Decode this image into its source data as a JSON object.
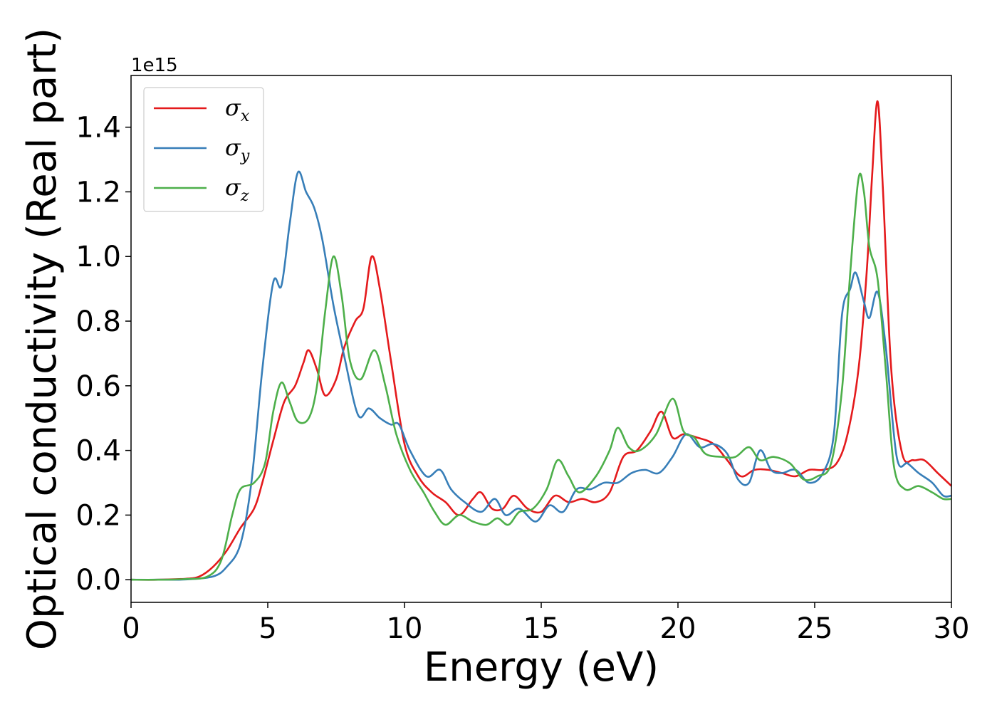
{
  "chart_data": {
    "type": "line",
    "xlabel": "Energy (eV)",
    "ylabel": "Optical conductivity (Real part)",
    "offset_text": "1e15",
    "xlim": [
      0,
      30
    ],
    "ylim": [
      -0.07,
      1.56
    ],
    "x_ticks": [
      0,
      5,
      10,
      15,
      20,
      25,
      30
    ],
    "x_tick_labels": [
      "0",
      "5",
      "10",
      "15",
      "20",
      "25",
      "30"
    ],
    "y_ticks": [
      0.0,
      0.2,
      0.4,
      0.6,
      0.8,
      1.0,
      1.2,
      1.4
    ],
    "y_tick_labels": [
      "0.0",
      "0.2",
      "0.4",
      "0.6",
      "0.8",
      "1.0",
      "1.2",
      "1.4"
    ],
    "grid": false,
    "legend_position": "top-left",
    "series": [
      {
        "name": "σx",
        "legend_base": "σ",
        "legend_sub": "x",
        "color": "#e41a1c",
        "points": [
          [
            0,
            0
          ],
          [
            1,
            0
          ],
          [
            2,
            0.003
          ],
          [
            2.5,
            0.01
          ],
          [
            3,
            0.04
          ],
          [
            3.5,
            0.09
          ],
          [
            4,
            0.16
          ],
          [
            4.5,
            0.22
          ],
          [
            4.8,
            0.3
          ],
          [
            5.2,
            0.43
          ],
          [
            5.6,
            0.55
          ],
          [
            6,
            0.6
          ],
          [
            6.3,
            0.67
          ],
          [
            6.5,
            0.71
          ],
          [
            6.8,
            0.65
          ],
          [
            7.1,
            0.57
          ],
          [
            7.5,
            0.62
          ],
          [
            7.8,
            0.72
          ],
          [
            8.2,
            0.8
          ],
          [
            8.5,
            0.84
          ],
          [
            8.8,
            1.0
          ],
          [
            9.1,
            0.9
          ],
          [
            9.5,
            0.68
          ],
          [
            10,
            0.42
          ],
          [
            10.5,
            0.32
          ],
          [
            11,
            0.27
          ],
          [
            11.5,
            0.24
          ],
          [
            12,
            0.2
          ],
          [
            12.5,
            0.25
          ],
          [
            12.8,
            0.27
          ],
          [
            13.2,
            0.22
          ],
          [
            13.6,
            0.22
          ],
          [
            14,
            0.26
          ],
          [
            14.5,
            0.22
          ],
          [
            15,
            0.21
          ],
          [
            15.5,
            0.26
          ],
          [
            16,
            0.24
          ],
          [
            16.5,
            0.25
          ],
          [
            17,
            0.24
          ],
          [
            17.5,
            0.27
          ],
          [
            18,
            0.38
          ],
          [
            18.5,
            0.4
          ],
          [
            19,
            0.46
          ],
          [
            19.4,
            0.52
          ],
          [
            19.8,
            0.44
          ],
          [
            20.2,
            0.45
          ],
          [
            20.7,
            0.44
          ],
          [
            21.3,
            0.42
          ],
          [
            21.8,
            0.37
          ],
          [
            22.3,
            0.32
          ],
          [
            22.8,
            0.34
          ],
          [
            23.3,
            0.34
          ],
          [
            23.8,
            0.33
          ],
          [
            24.3,
            0.32
          ],
          [
            24.8,
            0.34
          ],
          [
            25.3,
            0.34
          ],
          [
            25.8,
            0.36
          ],
          [
            26.2,
            0.45
          ],
          [
            26.6,
            0.65
          ],
          [
            26.9,
            0.95
          ],
          [
            27.1,
            1.25
          ],
          [
            27.3,
            1.48
          ],
          [
            27.5,
            1.2
          ],
          [
            27.8,
            0.65
          ],
          [
            28.2,
            0.39
          ],
          [
            28.6,
            0.37
          ],
          [
            29,
            0.37
          ],
          [
            29.5,
            0.33
          ],
          [
            30,
            0.29
          ]
        ]
      },
      {
        "name": "σy",
        "legend_base": "σ",
        "legend_sub": "y",
        "color": "#377eb8",
        "points": [
          [
            0,
            0
          ],
          [
            1,
            0
          ],
          [
            2,
            0.001
          ],
          [
            3,
            0.01
          ],
          [
            3.5,
            0.04
          ],
          [
            4,
            0.11
          ],
          [
            4.4,
            0.3
          ],
          [
            4.8,
            0.65
          ],
          [
            5.2,
            0.92
          ],
          [
            5.5,
            0.91
          ],
          [
            5.8,
            1.1
          ],
          [
            6.1,
            1.26
          ],
          [
            6.4,
            1.2
          ],
          [
            6.7,
            1.15
          ],
          [
            7,
            1.05
          ],
          [
            7.4,
            0.85
          ],
          [
            7.8,
            0.69
          ],
          [
            8.3,
            0.51
          ],
          [
            8.7,
            0.53
          ],
          [
            9.1,
            0.5
          ],
          [
            9.5,
            0.48
          ],
          [
            9.8,
            0.48
          ],
          [
            10.2,
            0.4
          ],
          [
            10.8,
            0.32
          ],
          [
            11.3,
            0.34
          ],
          [
            11.7,
            0.28
          ],
          [
            12.2,
            0.24
          ],
          [
            12.8,
            0.21
          ],
          [
            13.3,
            0.25
          ],
          [
            13.7,
            0.2
          ],
          [
            14.2,
            0.22
          ],
          [
            14.8,
            0.18
          ],
          [
            15.3,
            0.23
          ],
          [
            15.8,
            0.21
          ],
          [
            16.3,
            0.28
          ],
          [
            16.8,
            0.28
          ],
          [
            17.3,
            0.3
          ],
          [
            17.8,
            0.3
          ],
          [
            18.3,
            0.33
          ],
          [
            18.8,
            0.34
          ],
          [
            19.3,
            0.33
          ],
          [
            19.8,
            0.38
          ],
          [
            20.3,
            0.45
          ],
          [
            20.8,
            0.41
          ],
          [
            21.3,
            0.42
          ],
          [
            21.8,
            0.39
          ],
          [
            22.2,
            0.31
          ],
          [
            22.6,
            0.3
          ],
          [
            23,
            0.4
          ],
          [
            23.4,
            0.34
          ],
          [
            23.8,
            0.33
          ],
          [
            24.3,
            0.34
          ],
          [
            24.8,
            0.3
          ],
          [
            25.3,
            0.33
          ],
          [
            25.7,
            0.45
          ],
          [
            26,
            0.82
          ],
          [
            26.3,
            0.9
          ],
          [
            26.5,
            0.95
          ],
          [
            26.8,
            0.86
          ],
          [
            27,
            0.81
          ],
          [
            27.3,
            0.89
          ],
          [
            27.6,
            0.72
          ],
          [
            28,
            0.38
          ],
          [
            28.4,
            0.36
          ],
          [
            28.8,
            0.33
          ],
          [
            29.3,
            0.3
          ],
          [
            29.7,
            0.26
          ],
          [
            30,
            0.26
          ]
        ]
      },
      {
        "name": "σz",
        "legend_base": "σ",
        "legend_sub": "z",
        "color": "#4daf4a",
        "points": [
          [
            0,
            0
          ],
          [
            1,
            0
          ],
          [
            2,
            0.002
          ],
          [
            2.8,
            0.01
          ],
          [
            3.3,
            0.06
          ],
          [
            3.7,
            0.2
          ],
          [
            4,
            0.28
          ],
          [
            4.5,
            0.3
          ],
          [
            4.9,
            0.36
          ],
          [
            5.2,
            0.52
          ],
          [
            5.5,
            0.61
          ],
          [
            5.8,
            0.55
          ],
          [
            6.1,
            0.49
          ],
          [
            6.5,
            0.5
          ],
          [
            6.8,
            0.6
          ],
          [
            7.1,
            0.83
          ],
          [
            7.4,
            1.0
          ],
          [
            7.7,
            0.88
          ],
          [
            8,
            0.68
          ],
          [
            8.4,
            0.62
          ],
          [
            8.9,
            0.71
          ],
          [
            9.3,
            0.6
          ],
          [
            9.7,
            0.45
          ],
          [
            10.2,
            0.34
          ],
          [
            10.7,
            0.27
          ],
          [
            11.1,
            0.21
          ],
          [
            11.5,
            0.17
          ],
          [
            12,
            0.2
          ],
          [
            12.5,
            0.18
          ],
          [
            13,
            0.17
          ],
          [
            13.4,
            0.19
          ],
          [
            13.8,
            0.17
          ],
          [
            14.2,
            0.21
          ],
          [
            14.7,
            0.22
          ],
          [
            15.2,
            0.28
          ],
          [
            15.6,
            0.37
          ],
          [
            16,
            0.32
          ],
          [
            16.4,
            0.27
          ],
          [
            17,
            0.32
          ],
          [
            17.5,
            0.4
          ],
          [
            17.8,
            0.47
          ],
          [
            18.2,
            0.41
          ],
          [
            18.6,
            0.4
          ],
          [
            19.2,
            0.45
          ],
          [
            19.8,
            0.56
          ],
          [
            20.2,
            0.46
          ],
          [
            20.6,
            0.44
          ],
          [
            21,
            0.39
          ],
          [
            21.6,
            0.38
          ],
          [
            22.1,
            0.38
          ],
          [
            22.6,
            0.41
          ],
          [
            23,
            0.37
          ],
          [
            23.5,
            0.38
          ],
          [
            24.1,
            0.36
          ],
          [
            24.6,
            0.31
          ],
          [
            25.1,
            0.32
          ],
          [
            25.6,
            0.36
          ],
          [
            26,
            0.59
          ],
          [
            26.3,
            0.95
          ],
          [
            26.6,
            1.24
          ],
          [
            26.8,
            1.2
          ],
          [
            27,
            1.03
          ],
          [
            27.3,
            0.93
          ],
          [
            27.6,
            0.65
          ],
          [
            27.9,
            0.35
          ],
          [
            28.3,
            0.28
          ],
          [
            28.8,
            0.29
          ],
          [
            29.3,
            0.27
          ],
          [
            29.7,
            0.25
          ],
          [
            30,
            0.25
          ]
        ]
      }
    ]
  }
}
